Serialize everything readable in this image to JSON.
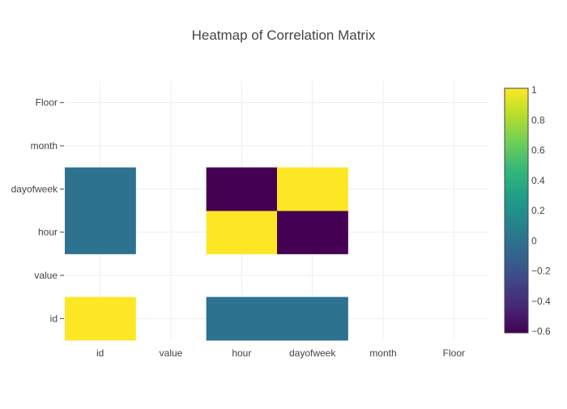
{
  "chart_data": {
    "type": "heatmap",
    "title": "Heatmap of Correlation Matrix",
    "xlabel": "",
    "ylabel": "",
    "x_categories": [
      "id",
      "value",
      "hour",
      "dayofweek",
      "month",
      "Floor"
    ],
    "y_categories": [
      "id",
      "value",
      "hour",
      "dayofweek",
      "month",
      "Floor"
    ],
    "z": [
      [
        1,
        null,
        -0.001,
        -0.001,
        null,
        null
      ],
      [
        null,
        null,
        null,
        null,
        null,
        null
      ],
      [
        -0.001,
        null,
        1,
        -0.6,
        null,
        null
      ],
      [
        -0.001,
        null,
        -0.6,
        1,
        null,
        null
      ],
      [
        null,
        null,
        null,
        null,
        null,
        null
      ],
      [
        null,
        null,
        null,
        null,
        null,
        null
      ]
    ],
    "colorscale": "Viridis",
    "zlim": [
      -0.6,
      1
    ],
    "colorbar_ticks": [
      "1",
      "0.8",
      "0.6",
      "0.4",
      "0.2",
      "0",
      "−0.2",
      "−0.4",
      "−0.6"
    ],
    "colorbar_tick_values": [
      1,
      0.8,
      0.6,
      0.4,
      0.2,
      0,
      -0.2,
      -0.4,
      -0.6
    ],
    "grid": true,
    "colors": {
      "grid": "#eeeeee",
      "text": "#444444",
      "tick": "#444444",
      "colorbar_border": "#444444"
    }
  }
}
